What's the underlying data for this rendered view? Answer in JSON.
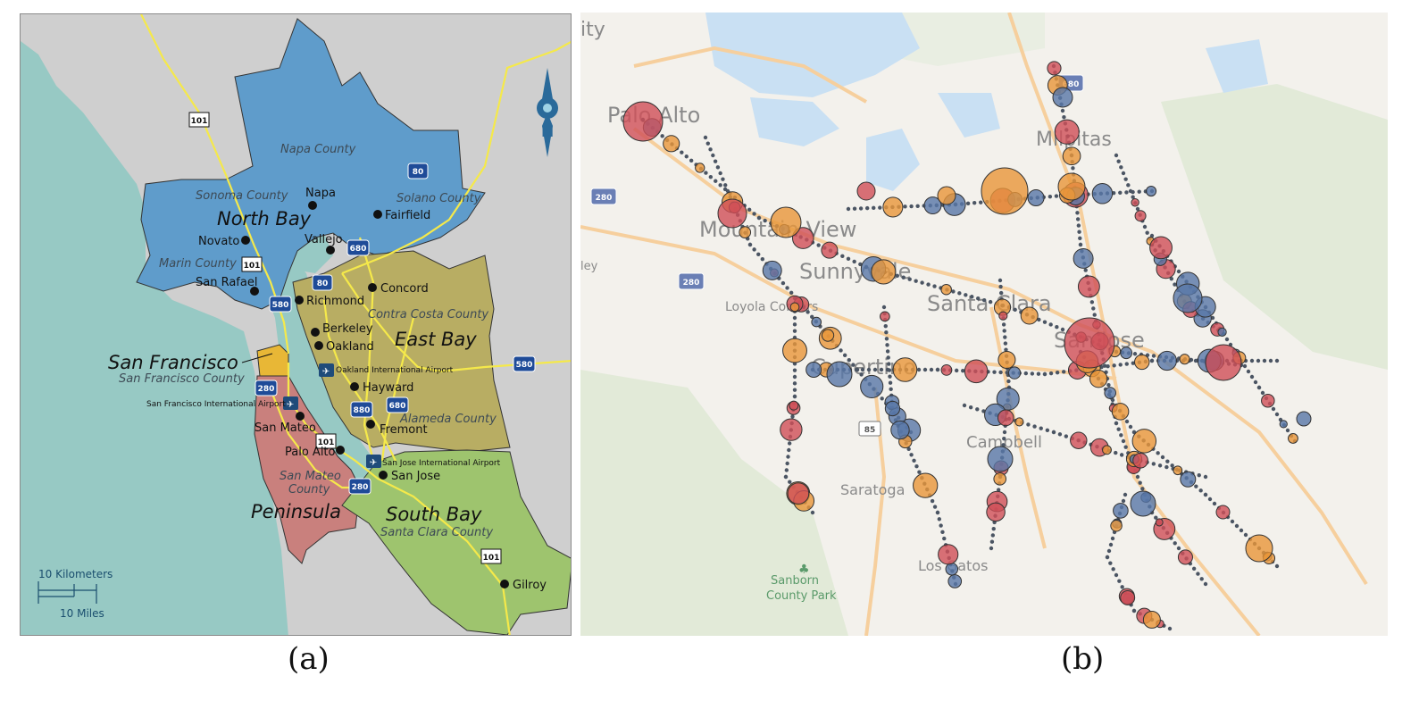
{
  "captions": {
    "a": "(a)",
    "b": "(b)"
  },
  "panel_a": {
    "regions": [
      {
        "name": "North Bay",
        "color": "#5f9ccb"
      },
      {
        "name": "East Bay",
        "color": "#b8ad63"
      },
      {
        "name": "San Francisco",
        "color": "#e8b736"
      },
      {
        "name": "Peninsula",
        "color": "#c9807d"
      },
      {
        "name": "South Bay",
        "color": "#9ec46e"
      }
    ],
    "region_labels": {
      "north_bay": "North Bay",
      "east_bay": "East Bay",
      "san_francisco": "San Francisco",
      "peninsula": "Peninsula",
      "south_bay": "South Bay"
    },
    "county_labels": {
      "napa": "Napa County",
      "sonoma": "Sonoma County",
      "solano": "Solano County",
      "marin": "Marin County",
      "contra_costa": "Contra Costa County",
      "san_francisco": "San Francisco County",
      "alameda": "Alameda County",
      "san_mateo_1": "San Mateo",
      "san_mateo_2": "County",
      "santa_clara": "Santa Clara County"
    },
    "cities": {
      "napa": "Napa",
      "fairfield": "Fairfield",
      "novato": "Novato",
      "vallejo": "Vallejo",
      "san_rafael": "San Rafael",
      "concord": "Concord",
      "richmond": "Richmond",
      "berkeley": "Berkeley",
      "oakland": "Oakland",
      "hayward": "Hayward",
      "fremont": "Fremont",
      "san_mateo": "San Mateo",
      "palo_alto": "Palo Alto",
      "san_jose": "San Jose",
      "gilroy": "Gilroy"
    },
    "airports": {
      "oakland": "Oakland International Airport",
      "sfo": "San Francisco International Airport",
      "sjc": "San Jose International Airport"
    },
    "highway_shields": {
      "us101": "101",
      "i80": "80",
      "i680": "680",
      "i580": "580",
      "i280": "280",
      "i880": "880"
    },
    "compass_letter": "N",
    "scale": {
      "km": "10 Kilometers",
      "mi": "10 Miles"
    },
    "colors": {
      "water": "#97c9c4",
      "land": "#cfcfcf",
      "highway": "#f5e94a"
    }
  },
  "panel_b": {
    "place_labels": {
      "city": "ity",
      "palo_alto": "Palo Alto",
      "milpitas": "Milpitas",
      "mountain_view": "Mountain View",
      "sunnyvale": "Sunnyvale",
      "santa_clara": "Santa Clara",
      "loyola": "Loyola Corners",
      "cupertino": "Cupertino",
      "san_jose": "San Jose",
      "campbell": "Campbell",
      "saratoga": "Saratoga",
      "los_gatos": "Los Gatos",
      "sanborn_1": "Sanborn",
      "sanborn_2": "County Park",
      "ley": "ley"
    },
    "shields": {
      "i680": "680",
      "i280a": "280",
      "i280b": "280",
      "r85": "85"
    },
    "colors": {
      "red": "#cf4f57",
      "orange": "#e8963a",
      "blue": "#5877a8",
      "water": "#c9e0f3",
      "road": "#f6cf9d"
    }
  }
}
